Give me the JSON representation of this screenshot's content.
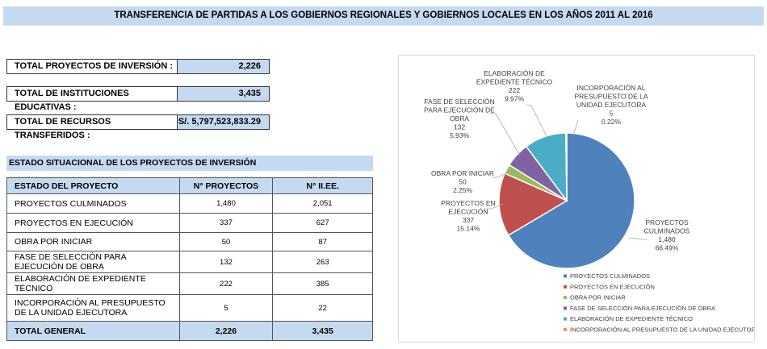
{
  "title": "TRANSFERENCIA DE PARTIDAS A LOS GOBIERNOS REGIONALES Y GOBIERNOS LOCALES EN LOS AÑOS 2011 AL 2016",
  "summary": [
    {
      "label": "TOTAL PROYECTOS DE INVERSIÓN :",
      "value": "2,226"
    },
    {
      "label": "TOTAL DE  INSTITUCIONES EDUCATIVAS :",
      "value": "3,435"
    },
    {
      "label": "TOTAL DE RECURSOS TRANSFERIDOS :",
      "value": "S/. 5,797,523,833.29"
    }
  ],
  "section_title": "ESTADO SITUACIONAL DE LOS PROYECTOS DE INVERSIÓN",
  "table": {
    "headers": [
      "ESTADO DEL PROYECTO",
      "N° PROYECTOS",
      "N° II.EE."
    ],
    "rows": [
      [
        "PROYECTOS CULMINADOS",
        "1,480",
        "2,051"
      ],
      [
        "PROYECTOS EN EJECUCIÓN",
        "337",
        "627"
      ],
      [
        "OBRA POR INICIAR",
        "50",
        "87"
      ],
      [
        "FASE DE SELECCIÓN PARA EJECUCIÓN DE OBRA",
        "132",
        "263"
      ],
      [
        "ELABORACIÓN DE EXPEDIENTE TÉCNICO",
        "222",
        "385"
      ],
      [
        "INCORPORACIÓN AL PRESUPUESTO DE LA UNIDAD EJECUTORA",
        "5",
        "22"
      ]
    ],
    "total": [
      "TOTAL GENERAL",
      "2,226",
      "3,435"
    ]
  },
  "chart_data": {
    "type": "pie",
    "legend_position": "bottom",
    "categories": [
      "PROYECTOS CULMINADOS",
      "PROYECTOS EN EJECUCIÓN",
      "OBRA POR INICIAR",
      "FASE DE SELECCIÓN PARA EJECUCIÓN DE OBRA",
      "ELABORACIÓN DE EXPEDIENTE TÉCNICO",
      "INCORPORACIÓN AL PRESUPUESTO DE LA UNIDAD EJECUTORA"
    ],
    "values": [
      1480,
      337,
      50,
      132,
      222,
      5
    ],
    "value_labels": [
      "1,480",
      "337",
      "50",
      "132",
      "222",
      "5"
    ],
    "percent_labels": [
      "66.49%",
      "15.14%",
      "2.25%",
      "5.93%",
      "9.97%",
      "0.22%"
    ],
    "colors": [
      "#4f81bd",
      "#c0504d",
      "#9bbb59",
      "#8064a2",
      "#4bacc6",
      "#f79646"
    ]
  }
}
